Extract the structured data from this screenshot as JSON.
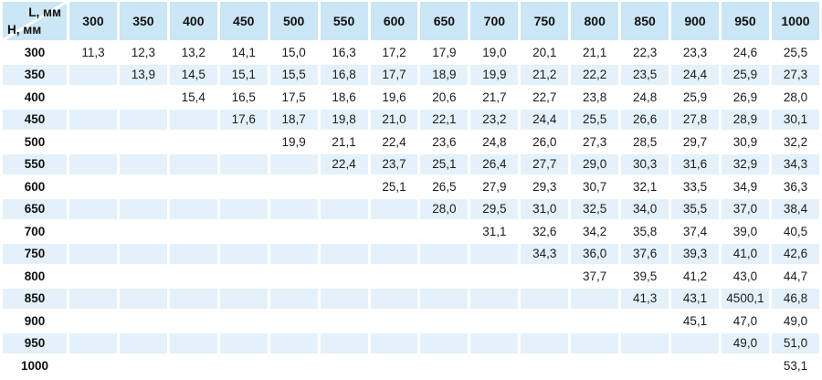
{
  "colors": {
    "header_bg": "#cbe6f5",
    "stripe_bg": "#e4f1fa",
    "row_bg": "#ffffff",
    "text": "#1b1b1b"
  },
  "chart_data": {
    "type": "table",
    "title": "",
    "col_axis_label": "L, мм",
    "row_axis_label": "H, мм",
    "columns": [
      "300",
      "350",
      "400",
      "450",
      "500",
      "550",
      "600",
      "650",
      "700",
      "750",
      "800",
      "850",
      "900",
      "950",
      "1000"
    ],
    "rows": [
      {
        "label": "300",
        "values": [
          "11,3",
          "12,3",
          "13,2",
          "14,1",
          "15,0",
          "16,3",
          "17,2",
          "17,9",
          "19,0",
          "20,1",
          "21,1",
          "22,3",
          "23,3",
          "24,6",
          "25,5"
        ]
      },
      {
        "label": "350",
        "values": [
          "",
          "13,9",
          "14,5",
          "15,1",
          "15,5",
          "16,8",
          "17,7",
          "18,9",
          "19,9",
          "21,2",
          "22,2",
          "23,5",
          "24,4",
          "25,9",
          "27,3"
        ]
      },
      {
        "label": "400",
        "values": [
          "",
          "",
          "15,4",
          "16,5",
          "17,5",
          "18,6",
          "19,6",
          "20,6",
          "21,7",
          "22,7",
          "23,8",
          "24,8",
          "25,9",
          "26,9",
          "28,0"
        ]
      },
      {
        "label": "450",
        "values": [
          "",
          "",
          "",
          "17,6",
          "18,7",
          "19,8",
          "21,0",
          "22,1",
          "23,2",
          "24,4",
          "25,5",
          "26,6",
          "27,8",
          "28,9",
          "30,1"
        ]
      },
      {
        "label": "500",
        "values": [
          "",
          "",
          "",
          "",
          "19,9",
          "21,1",
          "22,4",
          "23,6",
          "24,8",
          "26,0",
          "27,3",
          "28,5",
          "29,7",
          "30,9",
          "32,2"
        ]
      },
      {
        "label": "550",
        "values": [
          "",
          "",
          "",
          "",
          "",
          "22,4",
          "23,7",
          "25,1",
          "26,4",
          "27,7",
          "29,0",
          "30,3",
          "31,6",
          "32,9",
          "34,3"
        ]
      },
      {
        "label": "600",
        "values": [
          "",
          "",
          "",
          "",
          "",
          "",
          "25,1",
          "26,5",
          "27,9",
          "29,3",
          "30,7",
          "32,1",
          "33,5",
          "34,9",
          "36,3"
        ]
      },
      {
        "label": "650",
        "values": [
          "",
          "",
          "",
          "",
          "",
          "",
          "",
          "28,0",
          "29,5",
          "31,0",
          "32,5",
          "34,0",
          "35,5",
          "37,0",
          "38,4"
        ]
      },
      {
        "label": "700",
        "values": [
          "",
          "",
          "",
          "",
          "",
          "",
          "",
          "",
          "31,1",
          "32,6",
          "34,2",
          "35,8",
          "37,4",
          "39,0",
          "40,5"
        ]
      },
      {
        "label": "750",
        "values": [
          "",
          "",
          "",
          "",
          "",
          "",
          "",
          "",
          "",
          "34,3",
          "36,0",
          "37,6",
          "39,3",
          "41,0",
          "42,6"
        ]
      },
      {
        "label": "800",
        "values": [
          "",
          "",
          "",
          "",
          "",
          "",
          "",
          "",
          "",
          "",
          "37,7",
          "39,5",
          "41,2",
          "43,0",
          "44,7"
        ]
      },
      {
        "label": "850",
        "values": [
          "",
          "",
          "",
          "",
          "",
          "",
          "",
          "",
          "",
          "",
          "",
          "41,3",
          "43,1",
          "4500,1",
          "46,8"
        ]
      },
      {
        "label": "900",
        "values": [
          "",
          "",
          "",
          "",
          "",
          "",
          "",
          "",
          "",
          "",
          "",
          "",
          "45,1",
          "47,0",
          "49,0"
        ]
      },
      {
        "label": "950",
        "values": [
          "",
          "",
          "",
          "",
          "",
          "",
          "",
          "",
          "",
          "",
          "",
          "",
          "",
          "49,0",
          "51,0"
        ]
      },
      {
        "label": "1000",
        "values": [
          "",
          "",
          "",
          "",
          "",
          "",
          "",
          "",
          "",
          "",
          "",
          "",
          "",
          "",
          "53,1"
        ]
      }
    ]
  }
}
